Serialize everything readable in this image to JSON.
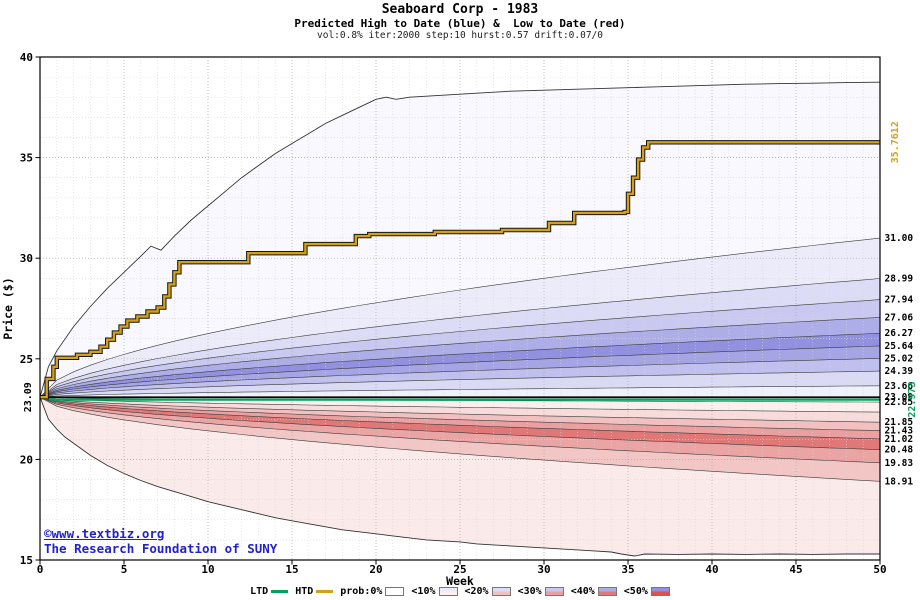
{
  "title": "Seaboard Corp - 1983",
  "subtitle": "Predicted High to Date (blue) &  Low to Date (red)",
  "params_line": "vol:0.8% iter:2000 step:10 hurst:0.57 drift:0.07/0",
  "watermark": {
    "line1": "©www.textbiz.org",
    "line2": "The Research Foundation of SUNY",
    "color": "#2222cc"
  },
  "chart_data": {
    "type": "line",
    "title": "Seaboard Corp - 1983",
    "subtitle": "Predicted High to Date (blue) & Low to Date (red)",
    "xlabel": "Week",
    "ylabel": "Price ($)",
    "xlim": [
      0,
      50
    ],
    "ylim": [
      15,
      40
    ],
    "x_ticks": [
      0,
      5,
      10,
      15,
      20,
      25,
      30,
      35,
      40,
      45,
      50
    ],
    "y_ticks": [
      15,
      20,
      25,
      30,
      35,
      40
    ],
    "grid": {
      "minor_color": "#d8d8d8",
      "major_color": "#a8a8a8"
    },
    "start_price": 23.09,
    "start_price_label": "23.09",
    "hurst": 0.57,
    "htd": {
      "name": "HTD (actual high to date)",
      "color": "#d4a017",
      "outline": "#151515",
      "end_value": 35.7612,
      "end_label": "35.7612",
      "steps": [
        [
          0,
          23.09
        ],
        [
          0.4,
          24.0
        ],
        [
          0.8,
          24.6
        ],
        [
          1.0,
          25.05
        ],
        [
          2.2,
          25.2
        ],
        [
          3.0,
          25.35
        ],
        [
          3.6,
          25.6
        ],
        [
          4.0,
          25.95
        ],
        [
          4.4,
          26.3
        ],
        [
          4.8,
          26.6
        ],
        [
          5.2,
          26.9
        ],
        [
          5.8,
          27.1
        ],
        [
          6.4,
          27.35
        ],
        [
          7.0,
          27.55
        ],
        [
          7.4,
          28.1
        ],
        [
          7.7,
          28.7
        ],
        [
          8.0,
          29.3
        ],
        [
          8.3,
          29.8
        ],
        [
          12.4,
          30.25
        ],
        [
          15.8,
          30.7
        ],
        [
          18.8,
          31.1
        ],
        [
          19.6,
          31.2
        ],
        [
          23.5,
          31.3
        ],
        [
          27.5,
          31.4
        ],
        [
          30.3,
          31.75
        ],
        [
          31.8,
          32.25
        ],
        [
          34.8,
          32.3
        ],
        [
          35.0,
          33.2
        ],
        [
          35.3,
          34.0
        ],
        [
          35.6,
          34.9
        ],
        [
          35.9,
          35.5
        ],
        [
          36.2,
          35.7612
        ],
        [
          50,
          35.7612
        ]
      ]
    },
    "ltd": {
      "name": "LTD (actual low to date)",
      "color": "#00a35c",
      "end_value": 22.973,
      "end_label": "22.973",
      "steps": [
        [
          0,
          23.09
        ],
        [
          0.3,
          23.0
        ],
        [
          0.7,
          22.973
        ],
        [
          50,
          22.973
        ]
      ]
    },
    "center_lines": [
      {
        "value": 23.09,
        "label": "23.09",
        "color": "#000000",
        "width": 1.8
      }
    ],
    "upper_envelope": [
      [
        0,
        23.09
      ],
      [
        0.5,
        24.6
      ],
      [
        1,
        25.4
      ],
      [
        2,
        26.6
      ],
      [
        3,
        27.6
      ],
      [
        4,
        28.5
      ],
      [
        5,
        29.3
      ],
      [
        6,
        30.1
      ],
      [
        6.6,
        30.6
      ],
      [
        7.2,
        30.4
      ],
      [
        8,
        31.1
      ],
      [
        9,
        31.9
      ],
      [
        10,
        32.6
      ],
      [
        11,
        33.3
      ],
      [
        12,
        34.0
      ],
      [
        13,
        34.6
      ],
      [
        14,
        35.2
      ],
      [
        15,
        35.7
      ],
      [
        16,
        36.2
      ],
      [
        17,
        36.7
      ],
      [
        18,
        37.1
      ],
      [
        19,
        37.5
      ],
      [
        20,
        37.9
      ],
      [
        20.6,
        38.0
      ],
      [
        21.2,
        37.9
      ],
      [
        22,
        38.0
      ],
      [
        23,
        38.05
      ],
      [
        24,
        38.1
      ],
      [
        26,
        38.2
      ],
      [
        28,
        38.3
      ],
      [
        30,
        38.35
      ],
      [
        32,
        38.4
      ],
      [
        34,
        38.45
      ],
      [
        36,
        38.5
      ],
      [
        38,
        38.55
      ],
      [
        40,
        38.6
      ],
      [
        42,
        38.65
      ],
      [
        44,
        38.68
      ],
      [
        46,
        38.7
      ],
      [
        48,
        38.73
      ],
      [
        50,
        38.75
      ]
    ],
    "lower_envelope": [
      [
        0,
        23.09
      ],
      [
        0.5,
        22.0
      ],
      [
        1,
        21.5
      ],
      [
        1.5,
        21.1
      ],
      [
        2,
        20.8
      ],
      [
        3,
        20.2
      ],
      [
        4,
        19.7
      ],
      [
        5,
        19.3
      ],
      [
        6,
        18.95
      ],
      [
        7,
        18.65
      ],
      [
        8,
        18.4
      ],
      [
        9,
        18.15
      ],
      [
        10,
        17.9
      ],
      [
        11,
        17.7
      ],
      [
        12,
        17.5
      ],
      [
        13,
        17.3
      ],
      [
        14,
        17.1
      ],
      [
        15,
        16.95
      ],
      [
        16,
        16.8
      ],
      [
        17,
        16.65
      ],
      [
        18,
        16.5
      ],
      [
        19,
        16.4
      ],
      [
        20,
        16.3
      ],
      [
        21,
        16.2
      ],
      [
        22,
        16.1
      ],
      [
        23,
        16.0
      ],
      [
        24,
        15.95
      ],
      [
        25,
        15.9
      ],
      [
        26,
        15.8
      ],
      [
        27,
        15.75
      ],
      [
        28,
        15.7
      ],
      [
        29,
        15.65
      ],
      [
        30,
        15.6
      ],
      [
        31,
        15.55
      ],
      [
        32,
        15.5
      ],
      [
        33,
        15.45
      ],
      [
        34,
        15.4
      ],
      [
        34.6,
        15.3
      ],
      [
        35.4,
        15.2
      ],
      [
        36,
        15.3
      ],
      [
        38,
        15.28
      ],
      [
        40,
        15.3
      ],
      [
        42,
        15.28
      ],
      [
        44,
        15.3
      ],
      [
        46,
        15.28
      ],
      [
        48,
        15.3
      ],
      [
        50,
        15.3
      ]
    ],
    "upper_boundaries": [
      {
        "end": 31.0,
        "label": "31.00"
      },
      {
        "end": 28.99,
        "label": "28.99"
      },
      {
        "end": 27.94,
        "label": "27.94"
      },
      {
        "end": 27.06,
        "label": "27.06"
      },
      {
        "end": 26.27,
        "label": "26.27"
      },
      {
        "end": 25.64,
        "label": "25.64"
      },
      {
        "end": 25.02,
        "label": "25.02"
      },
      {
        "end": 24.39,
        "label": "24.39"
      },
      {
        "end": 23.66,
        "label": "23.66"
      }
    ],
    "lower_boundaries": [
      {
        "end": 22.85,
        "label": "22.85"
      },
      {
        "end": 22.35,
        "label": ""
      },
      {
        "end": 21.85,
        "label": "21.85"
      },
      {
        "end": 21.43,
        "label": "21.43"
      },
      {
        "end": 21.02,
        "label": "21.02"
      },
      {
        "end": 20.48,
        "label": "20.48"
      },
      {
        "end": 19.83,
        "label": "19.83"
      },
      {
        "end": 18.91,
        "label": "18.91"
      }
    ],
    "upper_band_colors": [
      "#f8f8fe",
      "#ebebfa",
      "#dcdcf6",
      "#c8c8f0",
      "#adade8",
      "#9191e0",
      "#a5a5e5",
      "#c0c0ee",
      "#dadaf5",
      "#f0f0fb"
    ],
    "lower_band_colors": [
      "#fcefef",
      "#f8dcdc",
      "#f2c0c0",
      "#eaa0a0",
      "#e07878",
      "#eaa4a4",
      "#f3c6c6",
      "#fbeaea"
    ]
  },
  "legend": {
    "items": [
      {
        "label": "LTD",
        "type": "line",
        "color": "#00a35c"
      },
      {
        "label": "HTD",
        "type": "line",
        "color": "#d4a017"
      },
      {
        "label": "prob:0%",
        "type": "box",
        "blue": "#ffffff",
        "red": "#ffffff"
      },
      {
        "label": "<10%",
        "type": "box",
        "blue": "#ebebfa",
        "red": "#fcefef"
      },
      {
        "label": "<20%",
        "type": "box",
        "blue": "#dcdcf6",
        "red": "#f2c0c0"
      },
      {
        "label": "<30%",
        "type": "box",
        "blue": "#c8c8f0",
        "red": "#eaa0a0"
      },
      {
        "label": "<40%",
        "type": "box",
        "blue": "#adade8",
        "red": "#e07878"
      },
      {
        "label": "<50%",
        "type": "box",
        "blue": "#9191e0",
        "red": "#e05050"
      }
    ]
  }
}
